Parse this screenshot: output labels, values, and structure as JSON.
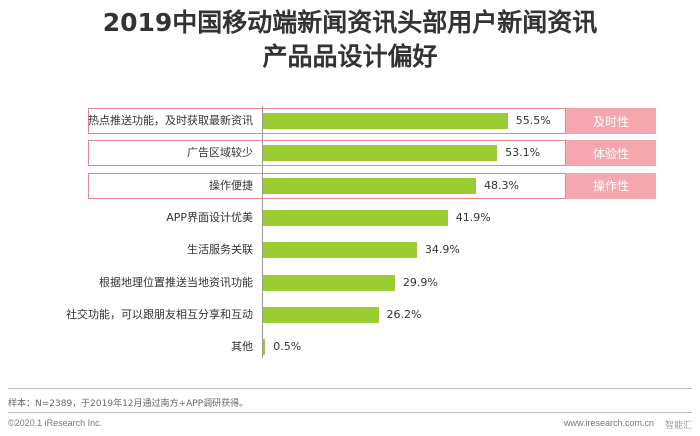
{
  "title_line1": "2019中国移动端新闻资讯头部用户新闻资讯",
  "title_line2": "产品品设计偏好",
  "chart_data": {
    "type": "bar",
    "orientation": "horizontal",
    "categories": [
      "热点推送功能，及时获取最新资讯",
      "广告区域较少",
      "操作便捷",
      "APP界面设计优美",
      "生活服务关联",
      "根据地理位置推送当地资讯功能",
      "社交功能，可以跟朋友相互分享和互动",
      "其他"
    ],
    "values": [
      55.5,
      53.1,
      48.3,
      41.9,
      34.9,
      29.9,
      26.2,
      0.5
    ],
    "value_labels": [
      "55.5%",
      "53.1%",
      "48.3%",
      "41.9%",
      "34.9%",
      "29.9%",
      "26.2%",
      "0.5%"
    ],
    "xlim": [
      0,
      60
    ],
    "bar_color": "#9acd32",
    "highlight_color": "#f4a7ad",
    "highlights": [
      {
        "category_index": 0,
        "label": "及时性"
      },
      {
        "category_index": 1,
        "label": "体验性"
      },
      {
        "category_index": 2,
        "label": "操作性"
      }
    ],
    "grid": false,
    "legend": "none"
  },
  "footer": {
    "note": "样本：N=2389，于2019年12月通过南方+APP调研获得。",
    "copyright": "©2020.1 iResearch Inc.",
    "website": "www.iresearch.com.cn",
    "watermark": "智能汇"
  }
}
